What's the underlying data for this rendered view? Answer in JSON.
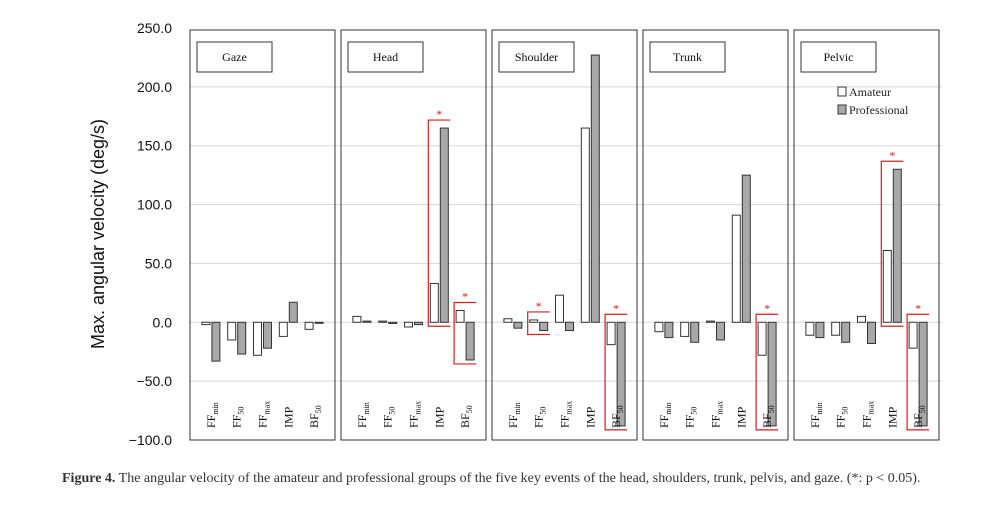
{
  "chart_data": {
    "type": "bar",
    "ylabel": "Max. angular velocity (deg/s)",
    "ylim": [
      -100,
      250
    ],
    "yticks": [
      "250.0",
      "200.0",
      "150.0",
      "100.0",
      "50.0",
      "0.0",
      "−50.0",
      "−100.0"
    ],
    "grid": true,
    "legend": {
      "placement": "top-right of Pelvic panel",
      "entries": [
        "Amateur",
        "Professional"
      ]
    },
    "colors": {
      "amateur": "#ffffff",
      "professional": "#a8a8a8",
      "significance": "#d02020",
      "border": "#333333"
    },
    "categories": [
      {
        "main": "FF",
        "sub": "min"
      },
      {
        "main": "FF",
        "sub": "50"
      },
      {
        "main": "FF",
        "sub": "max"
      },
      {
        "main": "IMP",
        "sub": ""
      },
      {
        "main": "BF",
        "sub": "50"
      }
    ],
    "panels": [
      {
        "title": "Gaze",
        "series": [
          {
            "name": "Amateur",
            "values": [
              -2,
              -15,
              -28,
              -12,
              -6
            ]
          },
          {
            "name": "Professional",
            "values": [
              -33,
              -27,
              -22,
              17,
              0
            ]
          }
        ],
        "significant": []
      },
      {
        "title": "Head",
        "series": [
          {
            "name": "Amateur",
            "values": [
              5,
              1,
              -4,
              33,
              10
            ]
          },
          {
            "name": "Professional",
            "values": [
              1,
              -1,
              -2,
              165,
              -32
            ]
          }
        ],
        "significant": [
          3,
          4
        ]
      },
      {
        "title": "Shoulder",
        "series": [
          {
            "name": "Amateur",
            "values": [
              3,
              2,
              23,
              165,
              -19
            ]
          },
          {
            "name": "Professional",
            "values": [
              -5,
              -7,
              -7,
              227,
              -88
            ]
          }
        ],
        "significant": [
          1,
          4
        ]
      },
      {
        "title": "Trunk",
        "series": [
          {
            "name": "Amateur",
            "values": [
              -8,
              -12,
              1,
              91,
              -28
            ]
          },
          {
            "name": "Professional",
            "values": [
              -13,
              -17,
              -15,
              125,
              -88
            ]
          }
        ],
        "significant": [
          4
        ]
      },
      {
        "title": "Pelvic",
        "series": [
          {
            "name": "Amateur",
            "values": [
              -11,
              -11,
              5,
              61,
              -22
            ]
          },
          {
            "name": "Professional",
            "values": [
              -13,
              -17,
              -18,
              130,
              -88
            ]
          }
        ],
        "significant": [
          3,
          4
        ]
      }
    ],
    "significance_marker": "*"
  },
  "caption": {
    "lead": "Figure 4.",
    "text": " The angular velocity of the amateur and professional groups of the five key events of the head, shoulders, trunk, pelvis, and gaze.  (*: p < 0.05)."
  }
}
